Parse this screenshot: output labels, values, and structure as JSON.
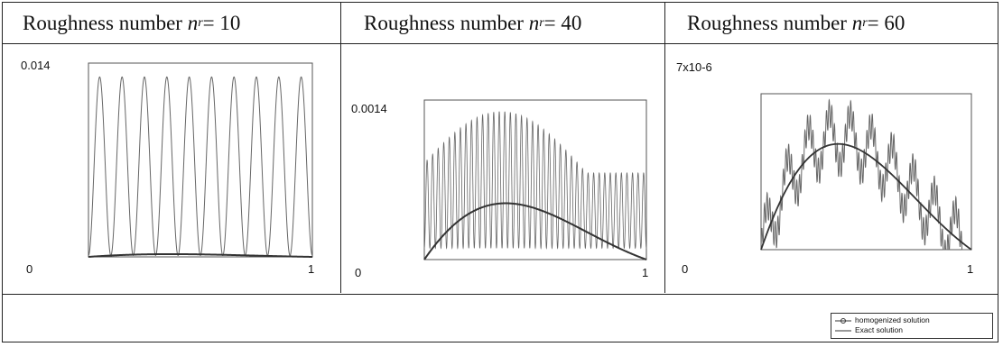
{
  "panels": [
    {
      "header_prefix": "Roughness number ",
      "header_var": "n",
      "header_sub": "r",
      "header_eq": " = 10",
      "ymax_label": "0.014",
      "xmin_label": "0",
      "xmax_label": "1"
    },
    {
      "header_prefix": "Roughness number ",
      "header_var": "n",
      "header_sub": "r",
      "header_eq": " = 40",
      "ymax_label": "0.0014",
      "xmin_label": "0",
      "xmax_label": "1"
    },
    {
      "header_prefix": "Roughness number ",
      "header_var": "n",
      "header_sub": "r",
      "header_eq": " = 60",
      "ymax_label": "7x10-6",
      "xmin_label": "0",
      "xmax_label": "1"
    }
  ],
  "legend": {
    "homogenized_label": "homogenized solution",
    "exact_label": "Exact solution"
  },
  "colors": {
    "line": "#333333",
    "oscillation": "#666666"
  },
  "chart_data": [
    {
      "type": "line",
      "title": "Roughness number n_r = 10",
      "xlim": [
        0,
        1
      ],
      "ylim": [
        0,
        0.014
      ],
      "series": [
        {
          "name": "homogenized solution",
          "description_values": {
            "roughness_number": 10,
            "peak_value": 0.013,
            "base_value": 0.0001
          }
        },
        {
          "name": "Exact solution",
          "description_values": {
            "peak_value": 0.0002
          }
        }
      ]
    },
    {
      "type": "line",
      "title": "Roughness number n_r = 40",
      "xlim": [
        0,
        1
      ],
      "ylim": [
        0,
        0.0014
      ],
      "series": [
        {
          "name": "homogenized solution",
          "description_values": {
            "roughness_number": 40,
            "peak_value": 0.0013,
            "base_value": 0.0001
          }
        },
        {
          "name": "Exact solution",
          "description_values": {
            "peak_x": 0.3,
            "peak_value": 0.0005
          }
        }
      ]
    },
    {
      "type": "line",
      "title": "Roughness number n_r = 60",
      "xlim": [
        0,
        1
      ],
      "ylim": [
        0,
        7e-06
      ],
      "series": [
        {
          "name": "homogenized solution",
          "description_values": {
            "roughness_number": 60,
            "peak_value": 7e-06
          }
        },
        {
          "name": "Exact solution",
          "description_values": {
            "peak_x": 0.3,
            "peak_value": 4.8e-06
          }
        }
      ]
    }
  ]
}
